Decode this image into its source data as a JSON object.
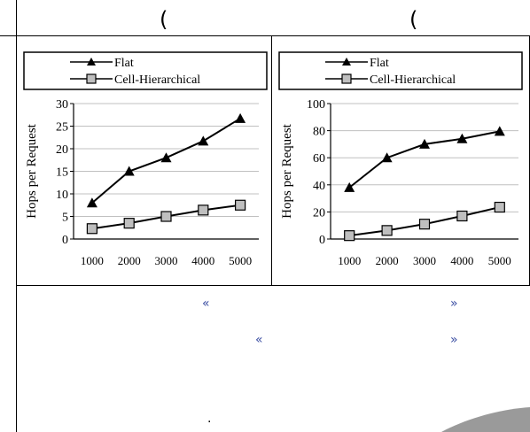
{
  "header": {
    "left_paren": "(",
    "right_paren": "("
  },
  "lower_panel": {
    "row1": {
      "open": "«",
      "close": "»"
    },
    "row2": {
      "open": "«",
      "close": "»"
    },
    "dot": "."
  },
  "colors": {
    "guillemet": "#3c4fa3",
    "series_flat_marker": "#000000",
    "series_cell_marker": "#bfbfbf",
    "grid": "#c0c0c0",
    "swoosh": "#9a9a9a"
  },
  "chart_data": [
    {
      "type": "line",
      "x": [
        1000,
        2000,
        3000,
        4000,
        5000
      ],
      "series": [
        {
          "name": "Flat",
          "marker": "triangle",
          "values": [
            8,
            15,
            18,
            21.7,
            26.7
          ]
        },
        {
          "name": "Cell-Hierarchical",
          "marker": "square",
          "values": [
            2.3,
            3.5,
            5,
            6.4,
            7.5
          ]
        }
      ],
      "xticks": [
        "1000",
        "2000",
        "3000",
        "4000",
        "5000"
      ],
      "yticks": [
        0,
        5,
        10,
        15,
        20,
        25,
        30
      ],
      "ylim": [
        0,
        30
      ],
      "ylabel": "Hops per Request",
      "grid": true,
      "legend": "top"
    },
    {
      "type": "line",
      "x": [
        1000,
        2000,
        3000,
        4000,
        5000
      ],
      "series": [
        {
          "name": "Flat",
          "marker": "triangle",
          "values": [
            38,
            60,
            70,
            74,
            79.5
          ]
        },
        {
          "name": "Cell-Hierarchical",
          "marker": "square",
          "values": [
            2.5,
            6.3,
            11,
            17,
            23.5
          ]
        }
      ],
      "xticks": [
        "1000",
        "2000",
        "3000",
        "4000",
        "5000"
      ],
      "yticks": [
        0,
        20,
        40,
        60,
        80,
        100
      ],
      "ylim": [
        0,
        100
      ],
      "ylabel": "Hops per Request",
      "grid": true,
      "legend": "top"
    }
  ]
}
